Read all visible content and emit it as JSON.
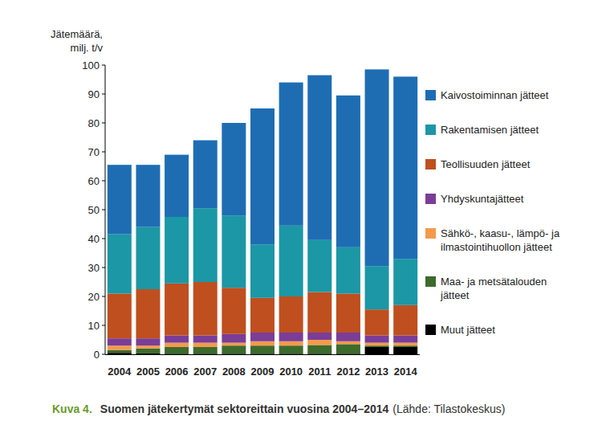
{
  "chart_data": {
    "type": "bar",
    "stacked": true,
    "grid": false,
    "legend": "right",
    "title": "Suomen jätekertymät sektoreittain vuosina 2004–2014",
    "subtitle": "(Lähde: Tilastokeskus)",
    "annotations": [
      "Kuva 4."
    ],
    "y_label": "Jätemäärä, milj. t/v",
    "categories": [
      "2004",
      "2005",
      "2006",
      "2007",
      "2008",
      "2009",
      "2010",
      "2011",
      "2012",
      "2013",
      "2014"
    ],
    "ylim": [
      0,
      100
    ],
    "yticks": [
      0,
      10,
      20,
      30,
      40,
      50,
      60,
      70,
      80,
      90,
      100
    ],
    "series": [
      {
        "name": "Muut jätteet",
        "color": "#000000",
        "values": [
          0.5,
          0.3,
          0.2,
          0.2,
          0.2,
          0.2,
          0.2,
          0.2,
          0.2,
          2.5,
          2.5
        ]
      },
      {
        "name": "Maa- ja metsätalouden jätteet",
        "color": "#3d6b2c",
        "values": [
          1.0,
          1.7,
          2.3,
          2.3,
          2.8,
          2.8,
          2.8,
          3.0,
          3.3,
          0.5,
          0.5
        ]
      },
      {
        "name": "Sähkö-, kaasu-, lämpö- ja ilmastointihuollon jätteet",
        "color": "#f39a4c",
        "values": [
          1.5,
          1.0,
          1.5,
          1.5,
          1.0,
          1.5,
          1.5,
          1.8,
          1.0,
          1.0,
          1.0
        ]
      },
      {
        "name": "Yhdyskuntajätteet",
        "color": "#7a3d98",
        "values": [
          2.5,
          2.5,
          2.5,
          2.5,
          3.0,
          3.0,
          3.0,
          2.5,
          3.0,
          2.5,
          2.5
        ]
      },
      {
        "name": "Teollisuuden jätteet",
        "color": "#bf4f1f",
        "values": [
          15.5,
          17.0,
          18.0,
          18.5,
          16.0,
          12.0,
          12.5,
          14.0,
          13.5,
          9.0,
          10.5
        ]
      },
      {
        "name": "Rakentamisen jätteet",
        "color": "#1b97a6",
        "values": [
          20.5,
          21.5,
          23.0,
          25.5,
          25.0,
          18.5,
          24.5,
          18.0,
          16.0,
          15.0,
          16.0
        ]
      },
      {
        "name": "Kaivostoiminnan jätteet",
        "color": "#1e6db3",
        "values": [
          24.0,
          21.5,
          21.5,
          23.5,
          32.0,
          47.0,
          49.5,
          57.0,
          52.5,
          68.0,
          63.0
        ]
      }
    ]
  }
}
